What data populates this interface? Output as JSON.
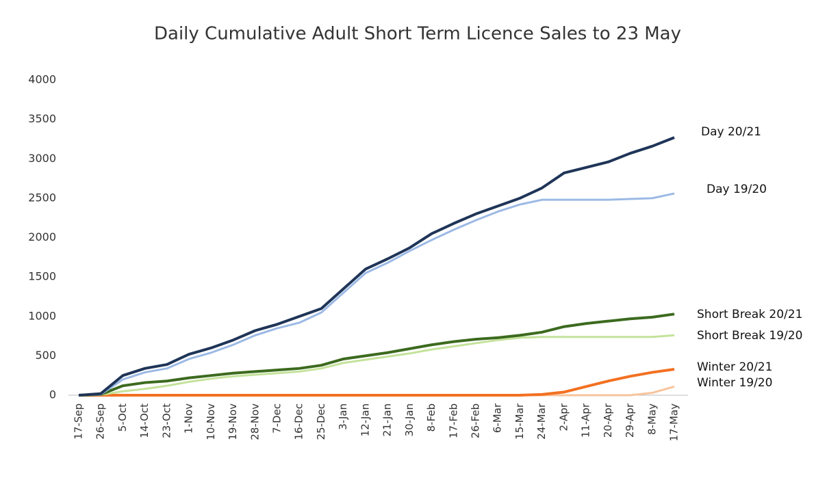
{
  "chart_data": {
    "type": "line",
    "title": "Daily Cumulative Adult Short Term Licence Sales to 23 May",
    "categories": [
      "17-Sep",
      "26-Sep",
      "5-Oct",
      "14-Oct",
      "23-Oct",
      "1-Nov",
      "10-Nov",
      "19-Nov",
      "28-Nov",
      "7-Dec",
      "16-Dec",
      "25-Dec",
      "3-Jan",
      "12-Jan",
      "21-Jan",
      "30-Jan",
      "8-Feb",
      "17-Feb",
      "26-Feb",
      "6-Mar",
      "15-Mar",
      "24-Mar",
      "2-Apr",
      "11-Apr",
      "20-Apr",
      "29-Apr",
      "8-May",
      "17-May"
    ],
    "series": [
      {
        "name": "Day 20/21",
        "color": "#1f3558",
        "values": [
          0,
          20,
          250,
          340,
          390,
          520,
          600,
          700,
          820,
          900,
          1000,
          1100,
          1350,
          1600,
          1730,
          1870,
          2050,
          2180,
          2300,
          2400,
          2500,
          2630,
          2820,
          2890,
          2960,
          3070,
          3160,
          3270
        ]
      },
      {
        "name": "Day 19/20",
        "color": "#9bb9e5",
        "values": [
          0,
          10,
          200,
          290,
          340,
          460,
          540,
          640,
          760,
          850,
          920,
          1050,
          1300,
          1550,
          1680,
          1830,
          1970,
          2100,
          2220,
          2330,
          2420,
          2480,
          2480,
          2480,
          2480,
          2490,
          2500,
          2560
        ]
      },
      {
        "name": "Short Break 20/21",
        "color": "#3c6a1e",
        "values": [
          0,
          10,
          120,
          160,
          180,
          220,
          250,
          280,
          300,
          320,
          340,
          380,
          460,
          500,
          540,
          590,
          640,
          680,
          710,
          730,
          760,
          800,
          870,
          910,
          940,
          970,
          990,
          1030
        ]
      },
      {
        "name": "Short Break 19/20",
        "color": "#c4e29a",
        "values": [
          0,
          5,
          50,
          80,
          120,
          170,
          210,
          240,
          260,
          280,
          300,
          340,
          410,
          450,
          490,
          530,
          580,
          620,
          660,
          700,
          730,
          740,
          740,
          740,
          740,
          740,
          740,
          760
        ]
      },
      {
        "name": "Winter 20/21",
        "color": "#f37021",
        "values": [
          0,
          0,
          0,
          0,
          0,
          0,
          0,
          0,
          0,
          0,
          0,
          0,
          0,
          0,
          0,
          0,
          0,
          0,
          0,
          0,
          0,
          10,
          40,
          110,
          180,
          240,
          290,
          330
        ]
      },
      {
        "name": "Winter 19/20",
        "color": "#f8c49c",
        "values": [
          0,
          0,
          0,
          0,
          0,
          0,
          0,
          0,
          0,
          0,
          0,
          0,
          0,
          0,
          0,
          0,
          0,
          0,
          0,
          0,
          0,
          0,
          0,
          0,
          0,
          0,
          30,
          110
        ]
      }
    ],
    "ylim": [
      0,
      4000
    ],
    "yticks": [
      0,
      500,
      1000,
      1500,
      2000,
      2500,
      3000,
      3500,
      4000
    ],
    "grid": false
  }
}
